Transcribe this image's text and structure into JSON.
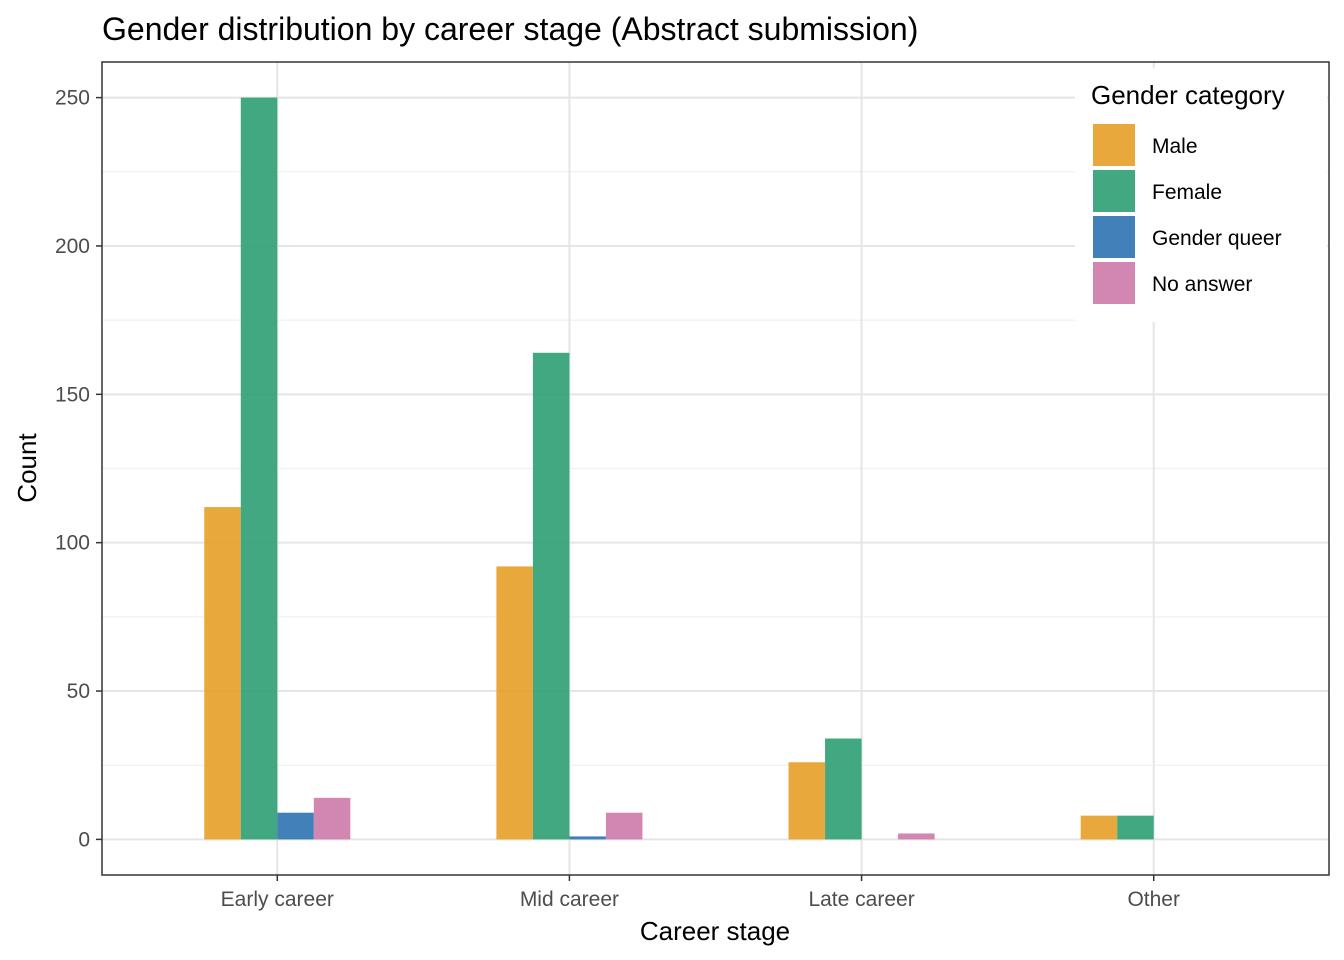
{
  "chart_data": {
    "type": "bar",
    "title": "Gender distribution by career stage (Abstract submission)",
    "xlabel": "Career stage",
    "ylabel": "Count",
    "categories": [
      "Early career",
      "Mid career",
      "Late career",
      "Other"
    ],
    "series": [
      {
        "name": "Male",
        "color": "#E69F26",
        "values": [
          112,
          92,
          26,
          8
        ]
      },
      {
        "name": "Female",
        "color": "#2E9E73",
        "values": [
          250,
          164,
          34,
          8
        ]
      },
      {
        "name": "Gender queer",
        "color": "#2E72B2",
        "values": [
          9,
          1,
          0,
          0
        ]
      },
      {
        "name": "No answer",
        "color": "#CC7AA8",
        "values": [
          14,
          9,
          2,
          0
        ]
      }
    ],
    "ylim": [
      -12,
      262
    ],
    "yticks": [
      0,
      50,
      100,
      150,
      200,
      250
    ],
    "grid": true,
    "legend": {
      "title": "Gender category",
      "position": "top-right"
    }
  }
}
